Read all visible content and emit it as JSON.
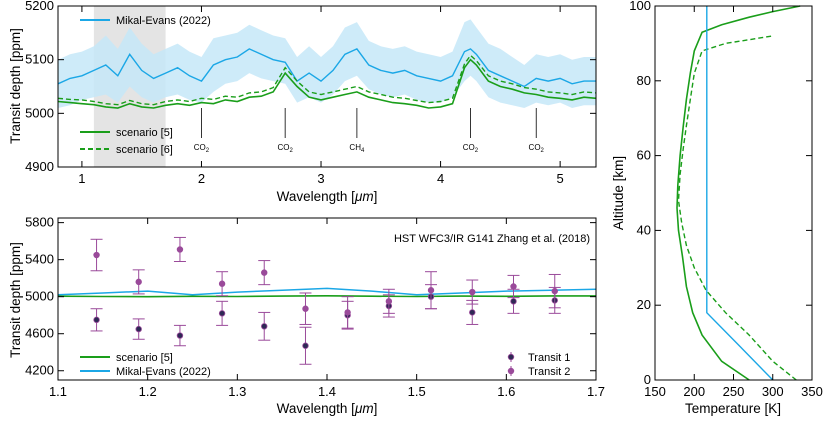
{
  "colors": {
    "model": "#1a9e1a",
    "obs": "#1ba7e6",
    "band": "#c6e8f8",
    "shade": "#e4e4e4",
    "transit_marker": "#2f2855",
    "transit_err": "#9a4a9a"
  },
  "chart_data": [
    {
      "id": "top",
      "type": "line",
      "xlabel_prefix": "Wavelength [",
      "xlabel_unit": "μm",
      "xlabel_suffix": "]",
      "ylabel": "Transit depth [ppm]",
      "xlim": [
        0.8,
        5.3
      ],
      "ylim": [
        4900,
        5200
      ],
      "xticks": [
        "1",
        "2",
        "3",
        "4",
        "5"
      ],
      "yticks": [
        "4900",
        "5000",
        "5100",
        "5200"
      ],
      "shaded_region": [
        1.1,
        1.7
      ],
      "annotations": [
        {
          "x": 2.0,
          "label": "CO",
          "sub": "2"
        },
        {
          "x": 2.7,
          "label": "CO",
          "sub": "2"
        },
        {
          "x": 3.3,
          "label": "CH",
          "sub": "4"
        },
        {
          "x": 4.25,
          "label": "CO",
          "sub": "2"
        },
        {
          "x": 4.8,
          "label": "CO",
          "sub": "2"
        }
      ],
      "legend_top": "Mikal-Evans (2022)",
      "legend_bottom": [
        "scenario [5]",
        "scenario [6]"
      ],
      "series": [
        {
          "name": "Mikal-Evans (2022)",
          "style": "band+line",
          "x": [
            0.8,
            0.9,
            1.0,
            1.1,
            1.2,
            1.3,
            1.4,
            1.5,
            1.6,
            1.7,
            1.8,
            1.9,
            2.0,
            2.1,
            2.2,
            2.3,
            2.4,
            2.5,
            2.6,
            2.7,
            2.8,
            2.9,
            3.0,
            3.1,
            3.2,
            3.3,
            3.4,
            3.5,
            3.6,
            3.7,
            3.8,
            3.9,
            4.0,
            4.1,
            4.2,
            4.25,
            4.3,
            4.4,
            4.5,
            4.6,
            4.7,
            4.8,
            4.9,
            5.0,
            5.1,
            5.2,
            5.3
          ],
          "y": [
            5055,
            5065,
            5070,
            5080,
            5090,
            5070,
            5110,
            5080,
            5065,
            5075,
            5085,
            5070,
            5060,
            5090,
            5100,
            5105,
            5120,
            5110,
            5100,
            5095,
            5060,
            5075,
            5060,
            5080,
            5110,
            5120,
            5090,
            5080,
            5075,
            5080,
            5070,
            5065,
            5060,
            5070,
            5115,
            5120,
            5110,
            5080,
            5070,
            5060,
            5050,
            5065,
            5060,
            5065,
            5055,
            5060,
            5060
          ],
          "low": [
            5010,
            5015,
            5025,
            5030,
            5035,
            5020,
            5050,
            5030,
            5020,
            5030,
            5035,
            5025,
            5020,
            5040,
            5055,
            5060,
            5075,
            5065,
            5060,
            5055,
            5020,
            5030,
            5020,
            5035,
            5060,
            5070,
            5045,
            5035,
            5030,
            5035,
            5025,
            5020,
            5020,
            5030,
            5060,
            5070,
            5060,
            5030,
            5020,
            5015,
            5010,
            5020,
            5015,
            5020,
            5010,
            5015,
            5015
          ],
          "high": [
            5100,
            5110,
            5115,
            5125,
            5145,
            5120,
            5160,
            5130,
            5110,
            5120,
            5130,
            5115,
            5105,
            5140,
            5145,
            5150,
            5165,
            5155,
            5145,
            5140,
            5105,
            5125,
            5105,
            5125,
            5160,
            5170,
            5135,
            5125,
            5120,
            5125,
            5115,
            5110,
            5105,
            5115,
            5170,
            5175,
            5160,
            5130,
            5120,
            5105,
            5090,
            5110,
            5105,
            5110,
            5100,
            5105,
            5105
          ]
        },
        {
          "name": "scenario [5]",
          "style": "solid",
          "x": [
            0.8,
            0.9,
            1.0,
            1.1,
            1.2,
            1.3,
            1.4,
            1.5,
            1.6,
            1.7,
            1.8,
            1.9,
            2.0,
            2.1,
            2.2,
            2.3,
            2.4,
            2.5,
            2.6,
            2.7,
            2.8,
            2.9,
            3.0,
            3.1,
            3.2,
            3.3,
            3.4,
            3.5,
            3.6,
            3.7,
            3.8,
            3.9,
            4.0,
            4.1,
            4.2,
            4.25,
            4.3,
            4.4,
            4.5,
            4.6,
            4.7,
            4.8,
            4.9,
            5.0,
            5.1,
            5.2,
            5.3
          ],
          "y": [
            5022,
            5020,
            5018,
            5016,
            5012,
            5010,
            5018,
            5012,
            5010,
            5015,
            5018,
            5015,
            5020,
            5018,
            5025,
            5022,
            5030,
            5032,
            5040,
            5075,
            5050,
            5030,
            5025,
            5030,
            5035,
            5040,
            5030,
            5025,
            5020,
            5018,
            5015,
            5010,
            5012,
            5018,
            5085,
            5100,
            5090,
            5060,
            5050,
            5045,
            5038,
            5035,
            5030,
            5028,
            5025,
            5030,
            5028
          ]
        },
        {
          "name": "scenario [6]",
          "style": "dashed",
          "x": [
            0.8,
            0.9,
            1.0,
            1.1,
            1.2,
            1.3,
            1.4,
            1.5,
            1.6,
            1.7,
            1.8,
            1.9,
            2.0,
            2.1,
            2.2,
            2.3,
            2.4,
            2.5,
            2.6,
            2.7,
            2.8,
            2.9,
            3.0,
            3.1,
            3.2,
            3.3,
            3.4,
            3.5,
            3.6,
            3.7,
            3.8,
            3.9,
            4.0,
            4.1,
            4.2,
            4.25,
            4.3,
            4.4,
            4.5,
            4.6,
            4.7,
            4.8,
            4.9,
            5.0,
            5.1,
            5.2,
            5.3
          ],
          "y": [
            5028,
            5026,
            5025,
            5022,
            5018,
            5016,
            5024,
            5018,
            5016,
            5022,
            5025,
            5022,
            5028,
            5026,
            5032,
            5030,
            5038,
            5040,
            5048,
            5085,
            5060,
            5040,
            5035,
            5040,
            5045,
            5050,
            5040,
            5035,
            5030,
            5028,
            5024,
            5020,
            5022,
            5028,
            5092,
            5108,
            5098,
            5070,
            5060,
            5055,
            5048,
            5045,
            5040,
            5038,
            5035,
            5040,
            5038
          ]
        }
      ]
    },
    {
      "id": "bottom",
      "type": "scatter",
      "xlabel_prefix": "Wavelength [",
      "xlabel_unit": "μm",
      "xlabel_suffix": "]",
      "ylabel": "Transit depth [ppm]",
      "xlim": [
        1.1,
        1.7
      ],
      "ylim": [
        4100,
        5850
      ],
      "xticks": [
        "1.1",
        "1.2",
        "1.3",
        "1.4",
        "1.5",
        "1.6",
        "1.7"
      ],
      "yticks": [
        "4200",
        "4600",
        "5000",
        "5400",
        "5800"
      ],
      "annotation": "HST WFC3/IR G141 Zhang et al. (2018)",
      "legend_left": [
        "scenario [5]",
        "Mikal-Evans (2022)"
      ],
      "legend_right": [
        "Transit 1",
        "Transit 2"
      ],
      "lines": [
        {
          "name": "scenario [5]",
          "x": [
            1.1,
            1.15,
            1.2,
            1.25,
            1.3,
            1.35,
            1.4,
            1.45,
            1.5,
            1.55,
            1.6,
            1.65,
            1.7
          ],
          "y": [
            5005,
            5002,
            5000,
            5004,
            5002,
            5006,
            5010,
            5005,
            5002,
            5006,
            5004,
            5008,
            5008
          ]
        },
        {
          "name": "Mikal-Evans (2022)",
          "x": [
            1.1,
            1.15,
            1.2,
            1.25,
            1.3,
            1.35,
            1.4,
            1.45,
            1.5,
            1.55,
            1.6,
            1.65,
            1.7
          ],
          "y": [
            5020,
            5040,
            5060,
            5020,
            5050,
            5070,
            5090,
            5060,
            5020,
            5040,
            5060,
            5070,
            5080
          ]
        }
      ],
      "transit1": {
        "x": [
          1.143,
          1.19,
          1.236,
          1.283,
          1.33,
          1.376,
          1.423,
          1.469,
          1.516,
          1.562,
          1.608,
          1.654
        ],
        "y": [
          4750,
          4650,
          4580,
          4820,
          4680,
          4470,
          4800,
          4900,
          5000,
          4830,
          4950,
          4960
        ],
        "err": [
          120,
          110,
          110,
          130,
          150,
          200,
          150,
          120,
          130,
          130,
          130,
          140
        ]
      },
      "transit2": {
        "x": [
          1.143,
          1.19,
          1.236,
          1.283,
          1.33,
          1.376,
          1.423,
          1.469,
          1.516,
          1.562,
          1.608,
          1.654
        ],
        "y": [
          5450,
          5160,
          5510,
          5140,
          5260,
          4870,
          4830,
          4950,
          5070,
          5050,
          5110,
          5060
        ],
        "err": [
          170,
          130,
          130,
          130,
          130,
          170,
          170,
          130,
          200,
          130,
          120,
          180
        ]
      }
    },
    {
      "id": "right",
      "type": "line",
      "xlabel": "Temperature [K]",
      "ylabel": "Altitude [km]",
      "xlim": [
        150,
        350
      ],
      "ylim": [
        0,
        100
      ],
      "xticks": [
        "150",
        "200",
        "250",
        "300",
        "350"
      ],
      "yticks": [
        "0",
        "20",
        "40",
        "60",
        "80",
        "100"
      ],
      "series": [
        {
          "name": "scenario [5]",
          "style": "solid",
          "x": [
            270,
            235,
            210,
            198,
            190,
            185,
            180,
            178,
            179,
            182,
            186,
            190,
            195,
            200,
            210,
            235,
            270,
            300,
            335
          ],
          "y": [
            0,
            5,
            12,
            18,
            25,
            33,
            40,
            46,
            52,
            60,
            68,
            75,
            82,
            88,
            93,
            95,
            97,
            98.5,
            100
          ]
        },
        {
          "name": "scenario [6]",
          "style": "dashed",
          "x": [
            330,
            300,
            270,
            240,
            215,
            200,
            190,
            184,
            180,
            182,
            186,
            190,
            195,
            200,
            210,
            240,
            270,
            300
          ],
          "y": [
            0,
            5,
            12,
            18,
            24,
            30,
            36,
            42,
            48,
            55,
            62,
            68,
            75,
            82,
            88,
            90,
            91,
            92
          ]
        },
        {
          "name": "Mikal-Evans (2022)",
          "style": "solid",
          "x": [
            300,
            258,
            216,
            216,
            216
          ],
          "y": [
            0,
            9,
            18,
            60,
            100
          ]
        }
      ]
    }
  ]
}
